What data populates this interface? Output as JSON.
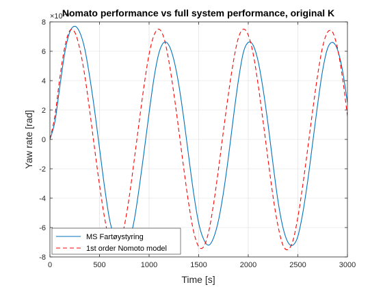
{
  "chart_data": {
    "type": "line",
    "title": "Nomato performance vs full system performance, original K",
    "xlabel": "Time [s]",
    "ylabel": "Yaw rate [rad]",
    "exponent_label": "×10⁻³",
    "xlim": [
      0,
      3000
    ],
    "ylim": [
      -8,
      8
    ],
    "xticks": [
      0,
      500,
      1000,
      1500,
      2000,
      2500,
      3000
    ],
    "yticks": [
      -8,
      -6,
      -4,
      -2,
      0,
      2,
      4,
      6,
      8
    ],
    "grid": true,
    "legend_position": "bottom-left",
    "series": [
      {
        "name": "MS Fartøystyring",
        "color": "#0072BD",
        "style": "solid",
        "x": [
          0,
          50,
          100,
          150,
          200,
          250,
          300,
          350,
          400,
          450,
          500,
          550,
          600,
          650,
          700,
          750,
          800,
          850,
          900,
          950,
          1000,
          1050,
          1100,
          1150,
          1200,
          1250,
          1300,
          1350,
          1400,
          1450,
          1500,
          1550,
          1600,
          1650,
          1700,
          1750,
          1800,
          1850,
          1900,
          1950,
          2000,
          2050,
          2100,
          2150,
          2200,
          2250,
          2300,
          2350,
          2400,
          2450,
          2500,
          2550,
          2600,
          2650,
          2700,
          2750,
          2800,
          2850,
          2900,
          2950,
          3000
        ],
        "y": [
          0,
          1.2,
          3.6,
          5.9,
          7.3,
          7.7,
          7.3,
          6.2,
          4.3,
          2.0,
          -0.6,
          -3.2,
          -5.4,
          -6.7,
          -7.5,
          -7.6,
          -6.9,
          -5.5,
          -3.3,
          -0.8,
          1.8,
          4.2,
          5.9,
          6.6,
          6.4,
          5.4,
          3.7,
          1.4,
          -1.2,
          -3.7,
          -5.7,
          -6.8,
          -7.2,
          -6.7,
          -5.5,
          -3.6,
          -1.2,
          1.5,
          4.0,
          5.9,
          6.6,
          6.4,
          5.3,
          3.4,
          1.0,
          -1.7,
          -4.2,
          -6.0,
          -7.0,
          -7.2,
          -6.6,
          -5.0,
          -2.8,
          -0.2,
          2.4,
          4.7,
          6.2,
          6.6,
          6.1,
          4.7,
          2.5
        ]
      },
      {
        "name": "1st order Nomoto model",
        "color": "#FF0000",
        "style": "dashed",
        "x": [
          0,
          50,
          100,
          150,
          200,
          250,
          300,
          350,
          400,
          450,
          500,
          550,
          600,
          650,
          700,
          750,
          800,
          850,
          900,
          950,
          1000,
          1050,
          1100,
          1150,
          1200,
          1250,
          1300,
          1350,
          1400,
          1450,
          1500,
          1550,
          1600,
          1650,
          1700,
          1750,
          1800,
          1850,
          1900,
          1950,
          2000,
          2050,
          2100,
          2150,
          2200,
          2250,
          2300,
          2350,
          2400,
          2450,
          2500,
          2550,
          2600,
          2650,
          2700,
          2750,
          2800,
          2850,
          2900,
          2950,
          3000
        ],
        "y": [
          0,
          1.6,
          4.2,
          6.3,
          7.4,
          7.3,
          6.2,
          4.4,
          2.0,
          -0.6,
          -3.1,
          -5.3,
          -6.9,
          -7.5,
          -7.2,
          -5.9,
          -3.9,
          -1.4,
          1.2,
          3.7,
          5.8,
          7.1,
          7.5,
          6.9,
          5.3,
          3.1,
          0.6,
          -2.0,
          -4.4,
          -6.3,
          -7.3,
          -7.3,
          -6.3,
          -4.4,
          -2.0,
          0.6,
          3.1,
          5.3,
          6.9,
          7.5,
          7.1,
          5.8,
          3.7,
          1.2,
          -1.4,
          -3.9,
          -5.9,
          -7.2,
          -7.5,
          -6.9,
          -5.3,
          -3.1,
          -0.6,
          2.0,
          4.4,
          6.3,
          7.3,
          7.3,
          6.2,
          4.2,
          1.6
        ]
      }
    ]
  }
}
